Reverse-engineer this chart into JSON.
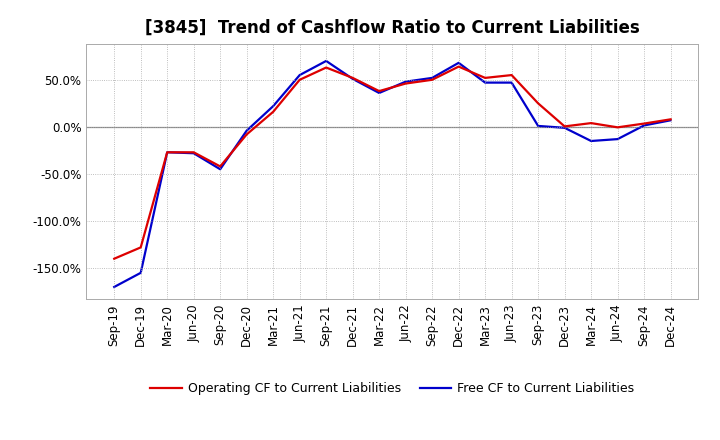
{
  "title": "[3845]  Trend of Cashflow Ratio to Current Liabilities",
  "x_labels": [
    "Sep-19",
    "Dec-19",
    "Mar-20",
    "Jun-20",
    "Sep-20",
    "Dec-20",
    "Mar-21",
    "Jun-21",
    "Sep-21",
    "Dec-21",
    "Mar-22",
    "Jun-22",
    "Sep-22",
    "Dec-22",
    "Mar-23",
    "Jun-23",
    "Sep-23",
    "Dec-23",
    "Mar-24",
    "Jun-24",
    "Sep-24",
    "Dec-24"
  ],
  "operating_cf": [
    -140.0,
    -128.0,
    -27.0,
    -27.0,
    -42.0,
    -8.0,
    16.0,
    50.0,
    63.0,
    52.0,
    38.0,
    46.0,
    50.0,
    64.0,
    52.0,
    55.0,
    25.0,
    0.5,
    4.0,
    -0.5,
    3.5,
    8.0
  ],
  "free_cf": [
    -170.0,
    -155.0,
    -27.0,
    -28.0,
    -45.0,
    -4.0,
    22.0,
    55.0,
    70.0,
    51.0,
    36.0,
    48.0,
    52.0,
    68.0,
    47.0,
    47.0,
    1.0,
    -1.0,
    -15.0,
    -13.0,
    1.5,
    7.0
  ],
  "ylim": [
    -183,
    88
  ],
  "yticks": [
    -150.0,
    -100.0,
    -50.0,
    0.0,
    50.0
  ],
  "operating_color": "#DD0000",
  "free_color": "#0000CC",
  "background_color": "#FFFFFF",
  "grid_color": "#AAAAAA",
  "zero_line_color": "#888888",
  "legend_operating": "Operating CF to Current Liabilities",
  "legend_free": "Free CF to Current Liabilities",
  "title_fontsize": 12,
  "axis_fontsize": 8.5,
  "legend_fontsize": 9,
  "line_width": 1.6
}
